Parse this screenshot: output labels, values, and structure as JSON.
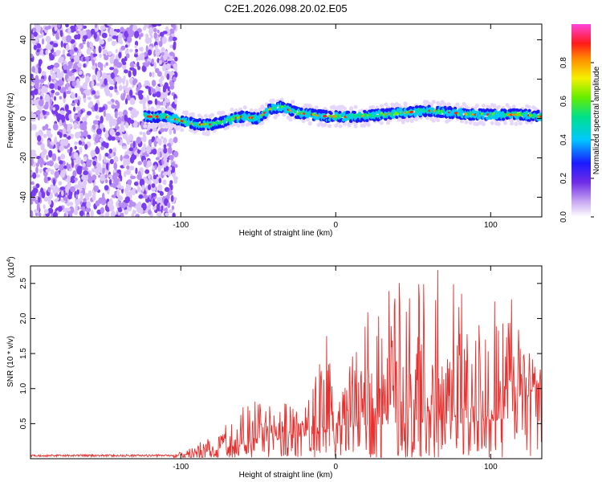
{
  "title": "C2E1.2026.098.20.02.E05",
  "chart_data": [
    {
      "type": "heatmap",
      "xlabel": "Height of straight line (km)",
      "ylabel": "Frequency (Hz)",
      "xlim": [
        -197,
        133
      ],
      "ylim": [
        -50,
        48
      ],
      "xticks": [
        -100,
        0,
        100
      ],
      "yticks": [
        -40,
        -20,
        0,
        20,
        40
      ],
      "xtick_labels": [
        "-100",
        "0",
        "100"
      ],
      "ytick_labels": [
        "-40",
        "-20",
        "0",
        "20",
        "40"
      ],
      "noise_region_x": [
        -197,
        -103
      ],
      "signal_start_x": -123,
      "ridge": [
        {
          "x": -123,
          "f": 1
        },
        {
          "x": -110,
          "f": 1
        },
        {
          "x": -100,
          "f": -1
        },
        {
          "x": -90,
          "f": -3
        },
        {
          "x": -80,
          "f": -3
        },
        {
          "x": -70,
          "f": -1
        },
        {
          "x": -60,
          "f": 1
        },
        {
          "x": -50,
          "f": 0
        },
        {
          "x": -42,
          "f": 5
        },
        {
          "x": -35,
          "f": 6
        },
        {
          "x": -25,
          "f": 3
        },
        {
          "x": -15,
          "f": 2
        },
        {
          "x": -5,
          "f": 1
        },
        {
          "x": 5,
          "f": 1
        },
        {
          "x": 15,
          "f": 1
        },
        {
          "x": 30,
          "f": 2
        },
        {
          "x": 45,
          "f": 3
        },
        {
          "x": 60,
          "f": 4
        },
        {
          "x": 75,
          "f": 3
        },
        {
          "x": 90,
          "f": 2
        },
        {
          "x": 105,
          "f": 2
        },
        {
          "x": 120,
          "f": 2
        },
        {
          "x": 133,
          "f": 1
        }
      ],
      "colorbar": {
        "label": "Normalized spectral amplitude",
        "range": [
          0,
          1
        ],
        "ticks": [
          0.0,
          0.2,
          0.4,
          0.6,
          0.8
        ],
        "tick_labels": [
          "0.0",
          "0.2",
          "0.4",
          "0.6",
          "0.8"
        ]
      }
    },
    {
      "type": "line",
      "xlabel": "Height of straight line (km)",
      "ylabel": "SNR (10 * v/v)",
      "scale_label": "(x10",
      "scale_exp": "4",
      "scale_close": ")",
      "xlim": [
        -197,
        133
      ],
      "ylim": [
        0,
        2.75
      ],
      "xticks": [
        -100,
        0,
        100
      ],
      "xtick_labels": [
        "-100",
        "0",
        "100"
      ],
      "yticks": [
        0.5,
        1.0,
        1.5,
        2.0,
        2.5
      ],
      "ytick_labels": [
        "0.5",
        "1.0",
        "1.5",
        "2.0",
        "2.5"
      ],
      "color": "#e8302e",
      "envelope": [
        {
          "x": -197,
          "y": 0.05
        },
        {
          "x": -130,
          "y": 0.05
        },
        {
          "x": -105,
          "y": 0.06
        },
        {
          "x": -90,
          "y": 0.2
        },
        {
          "x": -75,
          "y": 0.4
        },
        {
          "x": -60,
          "y": 0.9
        },
        {
          "x": -40,
          "y": 0.75
        },
        {
          "x": -15,
          "y": 1.0
        },
        {
          "x": -5,
          "y": 1.9
        },
        {
          "x": 0,
          "y": 0.6
        },
        {
          "x": 15,
          "y": 2.0
        },
        {
          "x": 30,
          "y": 2.3
        },
        {
          "x": 40,
          "y": 2.55
        },
        {
          "x": 55,
          "y": 2.55
        },
        {
          "x": 65,
          "y": 2.75
        },
        {
          "x": 80,
          "y": 2.5
        },
        {
          "x": 100,
          "y": 2.45
        },
        {
          "x": 115,
          "y": 2.4
        },
        {
          "x": 125,
          "y": 1.6
        },
        {
          "x": 133,
          "y": 1.4
        }
      ],
      "baseline": [
        {
          "x": -197,
          "y": 0.04
        },
        {
          "x": -100,
          "y": 0.04
        },
        {
          "x": -70,
          "y": 0.15
        },
        {
          "x": -40,
          "y": 0.25
        },
        {
          "x": -10,
          "y": 0.35
        },
        {
          "x": 10,
          "y": 0.45
        },
        {
          "x": 40,
          "y": 0.5
        },
        {
          "x": 80,
          "y": 0.5
        },
        {
          "x": 110,
          "y": 0.55
        },
        {
          "x": 133,
          "y": 1.1
        }
      ]
    }
  ]
}
